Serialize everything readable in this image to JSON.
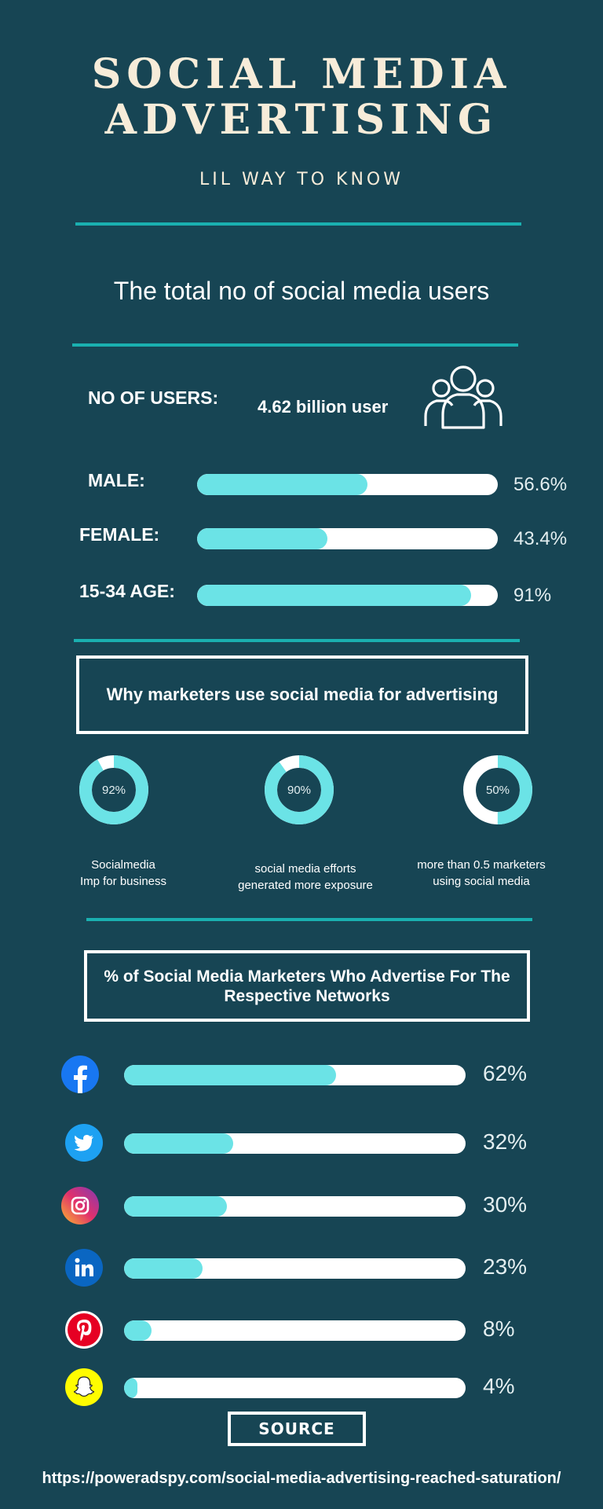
{
  "header": {
    "title_line1": "SOCIAL MEDIA",
    "title_line2": "ADVERTISING",
    "subtitle": "LIL WAY TO KNOW"
  },
  "users_section": {
    "heading": "The total no of social media users",
    "no_of_users_label": "NO OF USERS:",
    "no_of_users_value": "4.62 billion user",
    "icon": "users-group-icon"
  },
  "demographics": [
    {
      "label": "MALE:",
      "value": 56.6,
      "display": "56.6%"
    },
    {
      "label": "FEMALE:",
      "value": 43.4,
      "display": "43.4%"
    },
    {
      "label": "15-34 AGE:",
      "value": 91,
      "display": "91%"
    }
  ],
  "marketers_section": {
    "heading": "Why marketers use social media for advertising",
    "donuts": [
      {
        "value": 92,
        "display": "92%",
        "caption_line1": "Socialmedia",
        "caption_line2": "Imp for business"
      },
      {
        "value": 90,
        "display": "90%",
        "caption_line1": "social media efforts",
        "caption_line2": "generated more exposure"
      },
      {
        "value": 50,
        "display": "50%",
        "caption_line1": "more than 0.5 marketers",
        "caption_line2": "using social media"
      }
    ]
  },
  "networks_section": {
    "heading": "% of Social Media Marketers Who Advertise For The Respective Networks"
  },
  "chart_data": {
    "type": "bar",
    "categories": [
      "Facebook",
      "Twitter",
      "Instagram",
      "LinkedIn",
      "Pinterest",
      "Snapchat"
    ],
    "values": [
      62,
      32,
      30,
      23,
      8,
      4
    ],
    "labels": [
      "62%",
      "32%",
      "30%",
      "23%",
      "8%",
      "4%"
    ],
    "icons": [
      "facebook-icon",
      "twitter-icon",
      "instagram-icon",
      "linkedin-icon",
      "pinterest-icon",
      "snapchat-icon"
    ],
    "ylim": [
      0,
      100
    ]
  },
  "footer": {
    "source_label": "SOURCE",
    "url": "https://poweradspy.com/social-media-advertising-reached-saturation/"
  },
  "colors": {
    "background": "#174554",
    "accent_rule": "#1ab0b0",
    "bar_fill": "#6be3e6",
    "bar_track": "#ffffff",
    "title": "#f7ecd9"
  }
}
